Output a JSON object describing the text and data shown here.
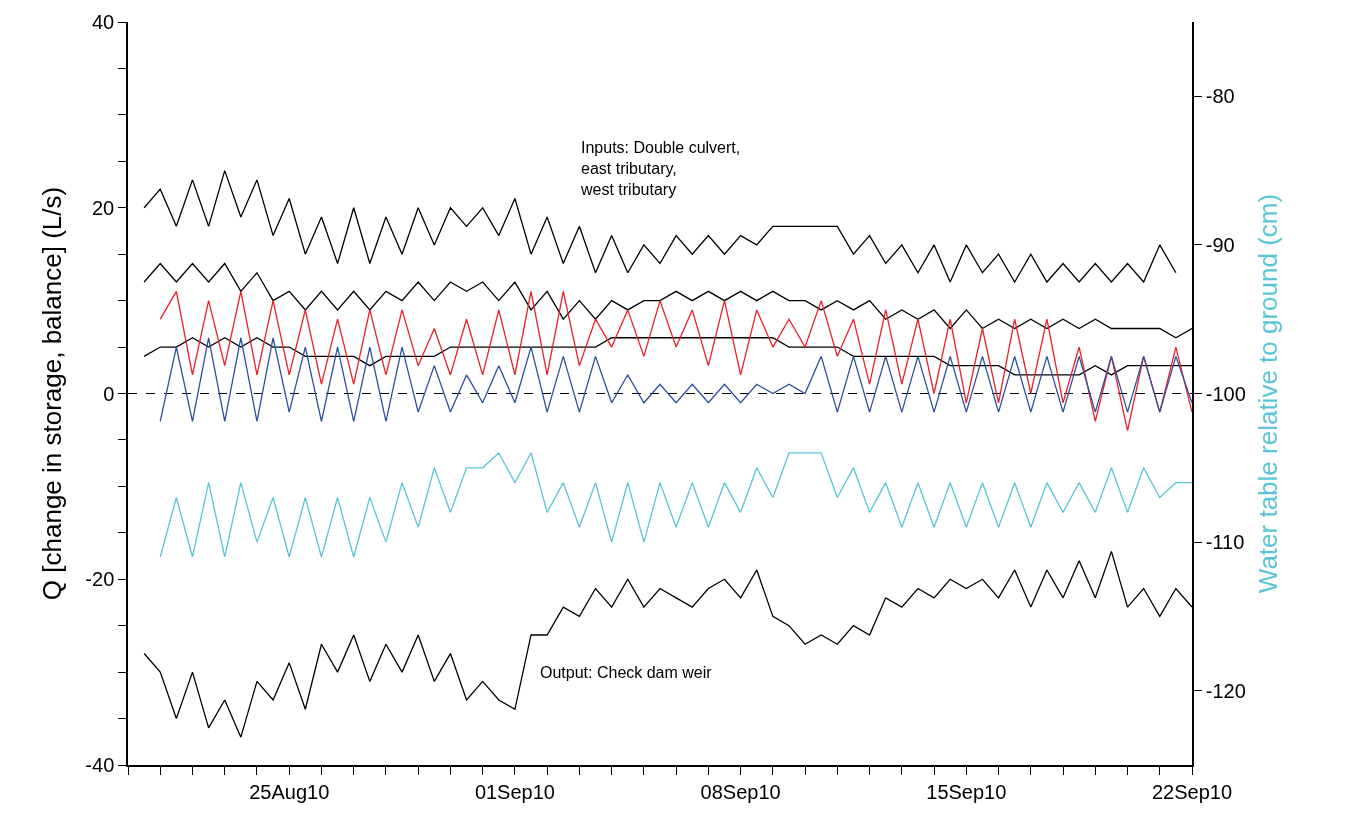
{
  "chart_data": {
    "type": "line",
    "ylabel": "Q [change in storage, balance] (L/s)",
    "y2label": "Water table relative to ground (cm)",
    "annotations": [
      "Inputs: Double culvert,\neast tributary,\nwest tributary",
      "Output: Check dam weir"
    ],
    "x": [
      "--08-20T12:00",
      "--08-21T00:00",
      "--08-21T12:00",
      "--08-22T00:00",
      "--08-22T12:00",
      "--08-23T00:00",
      "--08-23T12:00",
      "--08-24T00:00",
      "--08-24T12:00",
      "--08-25T00:00",
      "--08-25T12:00",
      "--08-26T00:00",
      "--08-26T12:00",
      "--08-27T00:00",
      "--08-27T12:00",
      "--08-28T00:00",
      "--08-28T12:00",
      "--08-29T00:00",
      "--08-29T12:00",
      "--08-30T00:00",
      "--08-30T12:00",
      "--08-31T00:00",
      "--08-31T12:00",
      "--09-01T00:00",
      "--09-01T12:00",
      "--09-02T00:00",
      "--09-02T12:00",
      "--09-03T00:00",
      "--09-03T12:00",
      "--09-04T00:00",
      "--09-04T12:00",
      "--09-05T00:00",
      "--09-05T12:00",
      "--09-06T00:00",
      "--09-06T12:00",
      "--09-07T00:00",
      "--09-07T12:00",
      "--09-08T00:00",
      "--09-08T12:00",
      "--09-09T00:00",
      "--09-09T12:00",
      "--09-10T00:00",
      "--09-10T12:00",
      "--09-11T00:00",
      "--09-11T12:00",
      "--09-12T00:00",
      "--09-12T12:00",
      "--09-13T00:00",
      "--09-13T12:00",
      "--09-14T00:00",
      "--09-14T12:00",
      "--09-15T00:00",
      "--09-15T12:00",
      "--09-16T00:00",
      "--09-16T12:00",
      "--09-17T00:00",
      "--09-17T12:00",
      "--09-18T00:00",
      "--09-18T12:00",
      "--09-19T00:00",
      "--09-19T12:00",
      "--09-20T00:00",
      "--09-20T12:00",
      "--09-21T00:00",
      "--09-21T12:00",
      "--09-22T00:00"
    ],
    "series": [
      {
        "color": "#000000",
        "values": [
          20,
          22,
          18,
          23,
          18,
          24,
          19,
          23,
          17,
          21,
          15,
          19,
          14,
          20,
          14,
          19,
          15,
          20,
          16,
          20,
          18,
          20,
          17,
          21,
          15,
          19,
          14,
          18,
          13,
          17,
          13,
          16,
          14,
          17,
          15,
          17,
          15,
          17,
          16,
          18,
          18,
          18,
          18,
          18,
          15,
          17,
          14,
          16,
          13,
          16,
          12,
          16,
          13,
          15,
          12,
          15,
          12,
          14,
          12,
          14,
          12,
          14,
          12,
          16,
          13,
          null
        ]
      },
      {
        "color": "#000000",
        "values": [
          12,
          14,
          12,
          14,
          12,
          14,
          11,
          13,
          10,
          11,
          9,
          11,
          9,
          11,
          9,
          11,
          10,
          12,
          10,
          12,
          11,
          12,
          10,
          12,
          9,
          11,
          8,
          10,
          8,
          10,
          9,
          10,
          10,
          11,
          10,
          11,
          10,
          11,
          10,
          11,
          10,
          10,
          9,
          10,
          9,
          10,
          8,
          9,
          8,
          9,
          7,
          9,
          7,
          8,
          7,
          8,
          7,
          8,
          7,
          8,
          7,
          7,
          7,
          7,
          6,
          7
        ]
      },
      {
        "color": "#000000",
        "values": [
          4,
          5,
          5,
          6,
          5,
          6,
          5,
          6,
          5,
          5,
          4,
          4,
          4,
          4,
          3,
          4,
          4,
          4,
          4,
          5,
          5,
          5,
          5,
          5,
          5,
          5,
          5,
          5,
          5,
          6,
          6,
          6,
          6,
          6,
          6,
          6,
          6,
          6,
          6,
          6,
          5,
          5,
          5,
          5,
          4,
          4,
          4,
          4,
          4,
          4,
          3,
          3,
          3,
          3,
          2,
          2,
          2,
          2,
          2,
          3,
          2,
          3,
          3,
          3,
          3,
          3
        ]
      },
      {
        "color": "#e8202a",
        "values": [
          null,
          8,
          11,
          2,
          10,
          3,
          11,
          2,
          10,
          2,
          9,
          1,
          8,
          1,
          9,
          2,
          9,
          3,
          7,
          2,
          8,
          2,
          9,
          2,
          11,
          2,
          11,
          3,
          8,
          5,
          9,
          4,
          10,
          5,
          9,
          3,
          10,
          2,
          9,
          5,
          8,
          5,
          10,
          4,
          8,
          1,
          9,
          1,
          8,
          0,
          8,
          -1,
          7,
          -1,
          8,
          0,
          8,
          -1,
          5,
          -3,
          4,
          -4,
          4,
          -2,
          5,
          -2
        ]
      },
      {
        "color": "#2e4e9e",
        "values": [
          null,
          -3,
          5,
          -3,
          6,
          -3,
          6,
          -3,
          6,
          -2,
          5,
          -3,
          5,
          -3,
          5,
          -3,
          5,
          -2,
          3,
          -2,
          2,
          -1,
          3,
          -1,
          5,
          -2,
          4,
          -2,
          4,
          -1,
          2,
          -1,
          1,
          -1,
          1,
          -1,
          1,
          -1,
          1,
          0,
          1,
          0,
          4,
          -2,
          4,
          -2,
          4,
          -2,
          4,
          -2,
          4,
          -2,
          4,
          -2,
          4,
          -2,
          4,
          -2,
          4,
          -2,
          4,
          -2,
          4,
          -2,
          4,
          -1
        ]
      },
      {
        "color": "#5bc4d6",
        "axis": "y2",
        "values": [
          null,
          -111,
          -107,
          -111,
          -106,
          -111,
          -106,
          -110,
          -107,
          -111,
          -107,
          -111,
          -107,
          -111,
          -107,
          -110,
          -106,
          -109,
          -105,
          -108,
          -105,
          -105,
          -104,
          -106,
          -104,
          -108,
          -106,
          -109,
          -106,
          -110,
          -106,
          -110,
          -106,
          -109,
          -106,
          -109,
          -106,
          -108,
          -105,
          -107,
          -104,
          -104,
          -104,
          -107,
          -105,
          -108,
          -106,
          -109,
          -106,
          -109,
          -106,
          -109,
          -106,
          -109,
          -106,
          -109,
          -106,
          -108,
          -106,
          -108,
          -105,
          -108,
          -105,
          -107,
          -106,
          -106
        ]
      },
      {
        "color": "#000000",
        "values": [
          -28,
          -30,
          -35,
          -30,
          -36,
          -33,
          -37,
          -31,
          -33,
          -29,
          -34,
          -27,
          -30,
          -26,
          -31,
          -27,
          -30,
          -26,
          -31,
          -28,
          -33,
          -31,
          -33,
          -34,
          -26,
          -26,
          -23,
          -24,
          -21,
          -23,
          -20,
          -23,
          -21,
          -22,
          -23,
          -21,
          -20,
          -22,
          -19,
          -24,
          -25,
          -27,
          -26,
          -27,
          -25,
          -26,
          -22,
          -23,
          -21,
          -22,
          -20,
          -21,
          -20,
          -22,
          -19,
          -23,
          -19,
          -22,
          -18,
          -22,
          -17,
          -23,
          -21,
          -24,
          -21,
          -23
        ]
      }
    ],
    "xlim": [
      "--08-20",
      "--09-22"
    ],
    "xticks": [
      {
        "value": "--08-20",
        "label": null
      },
      {
        "value": "--08-21",
        "label": null
      },
      {
        "value": "--08-22",
        "label": null
      },
      {
        "value": "--08-23",
        "label": null
      },
      {
        "value": "--08-24",
        "label": null
      },
      {
        "value": "--08-25",
        "label": "25Aug10"
      },
      {
        "value": "--08-26",
        "label": null
      },
      {
        "value": "--08-27",
        "label": null
      },
      {
        "value": "--08-28",
        "label": null
      },
      {
        "value": "--08-29",
        "label": null
      },
      {
        "value": "--08-30",
        "label": null
      },
      {
        "value": "--08-31",
        "label": null
      },
      {
        "value": "--09-01",
        "label": "01Sep10"
      },
      {
        "value": "--09-02",
        "label": null
      },
      {
        "value": "--09-03",
        "label": null
      },
      {
        "value": "--09-04",
        "label": null
      },
      {
        "value": "--09-05",
        "label": null
      },
      {
        "value": "--09-06",
        "label": null
      },
      {
        "value": "--09-07",
        "label": null
      },
      {
        "value": "--09-08",
        "label": "08Sep10"
      },
      {
        "value": "--09-09",
        "label": null
      },
      {
        "value": "--09-10",
        "label": null
      },
      {
        "value": "--09-11",
        "label": null
      },
      {
        "value": "--09-12",
        "label": null
      },
      {
        "value": "--09-13",
        "label": null
      },
      {
        "value": "--09-14",
        "label": null
      },
      {
        "value": "--09-15",
        "label": "15Sep10"
      },
      {
        "value": "--09-16",
        "label": null
      },
      {
        "value": "--09-17",
        "label": null
      },
      {
        "value": "--09-18",
        "label": null
      },
      {
        "value": "--09-19",
        "label": null
      },
      {
        "value": "--09-20",
        "label": null
      },
      {
        "value": "--09-21",
        "label": null
      },
      {
        "value": "--09-22",
        "label": "22Sep10"
      }
    ],
    "ylim": [
      -40,
      40
    ],
    "yticks": [
      -40,
      {
        "value": -35,
        "label": null
      },
      {
        "value": -30,
        "label": null
      },
      {
        "value": -25,
        "label": null
      },
      -20,
      {
        "value": -15,
        "label": null
      },
      {
        "value": -10,
        "label": null
      },
      {
        "value": -5,
        "label": null
      },
      0,
      {
        "value": 5,
        "label": null
      },
      {
        "value": 10,
        "label": null
      },
      {
        "value": 15,
        "label": null
      },
      20,
      {
        "value": 25,
        "label": null
      },
      {
        "value": 30,
        "label": null
      },
      {
        "value": 35,
        "label": null
      },
      40
    ],
    "y2lim": [
      -125,
      -75
    ],
    "y2ticks": [
      -80,
      -90,
      -100,
      -110,
      -120
    ],
    "ref_lines": [
      {
        "axis": "y",
        "value": 0,
        "color": "#000000",
        "line_style": "dashed"
      }
    ],
    "grid": false,
    "line_style": "solid",
    "marker": "none"
  }
}
